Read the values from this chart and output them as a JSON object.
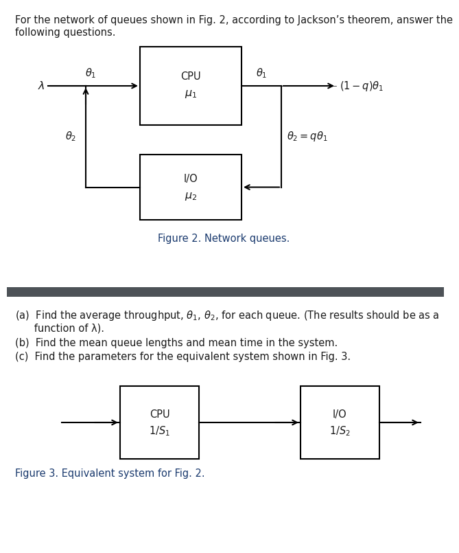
{
  "text_color": "#1a1a1a",
  "caption_color": "#1a3a6e",
  "divider_color": "#4d5257",
  "box_color": "#000000",
  "fig2_caption": "Figure 2. Network queues.",
  "fig3_caption": "Figure 3. Equivalent system for Fig. 2.",
  "header_line1": "For the network of queues shown in Fig. 2, according to Jackson’s theorem, answer the",
  "header_line2": "following questions.",
  "qa": "(a)  Find the average throughput, $\\theta_1$, $\\theta_2$, for each queue. (The results should be as a",
  "qa2": "      function of λ).",
  "qb": "(b)  Find the mean queue lengths and mean time in the system.",
  "qc": "(c)  Find the parameters for the equivalent system shown in Fig. 3."
}
